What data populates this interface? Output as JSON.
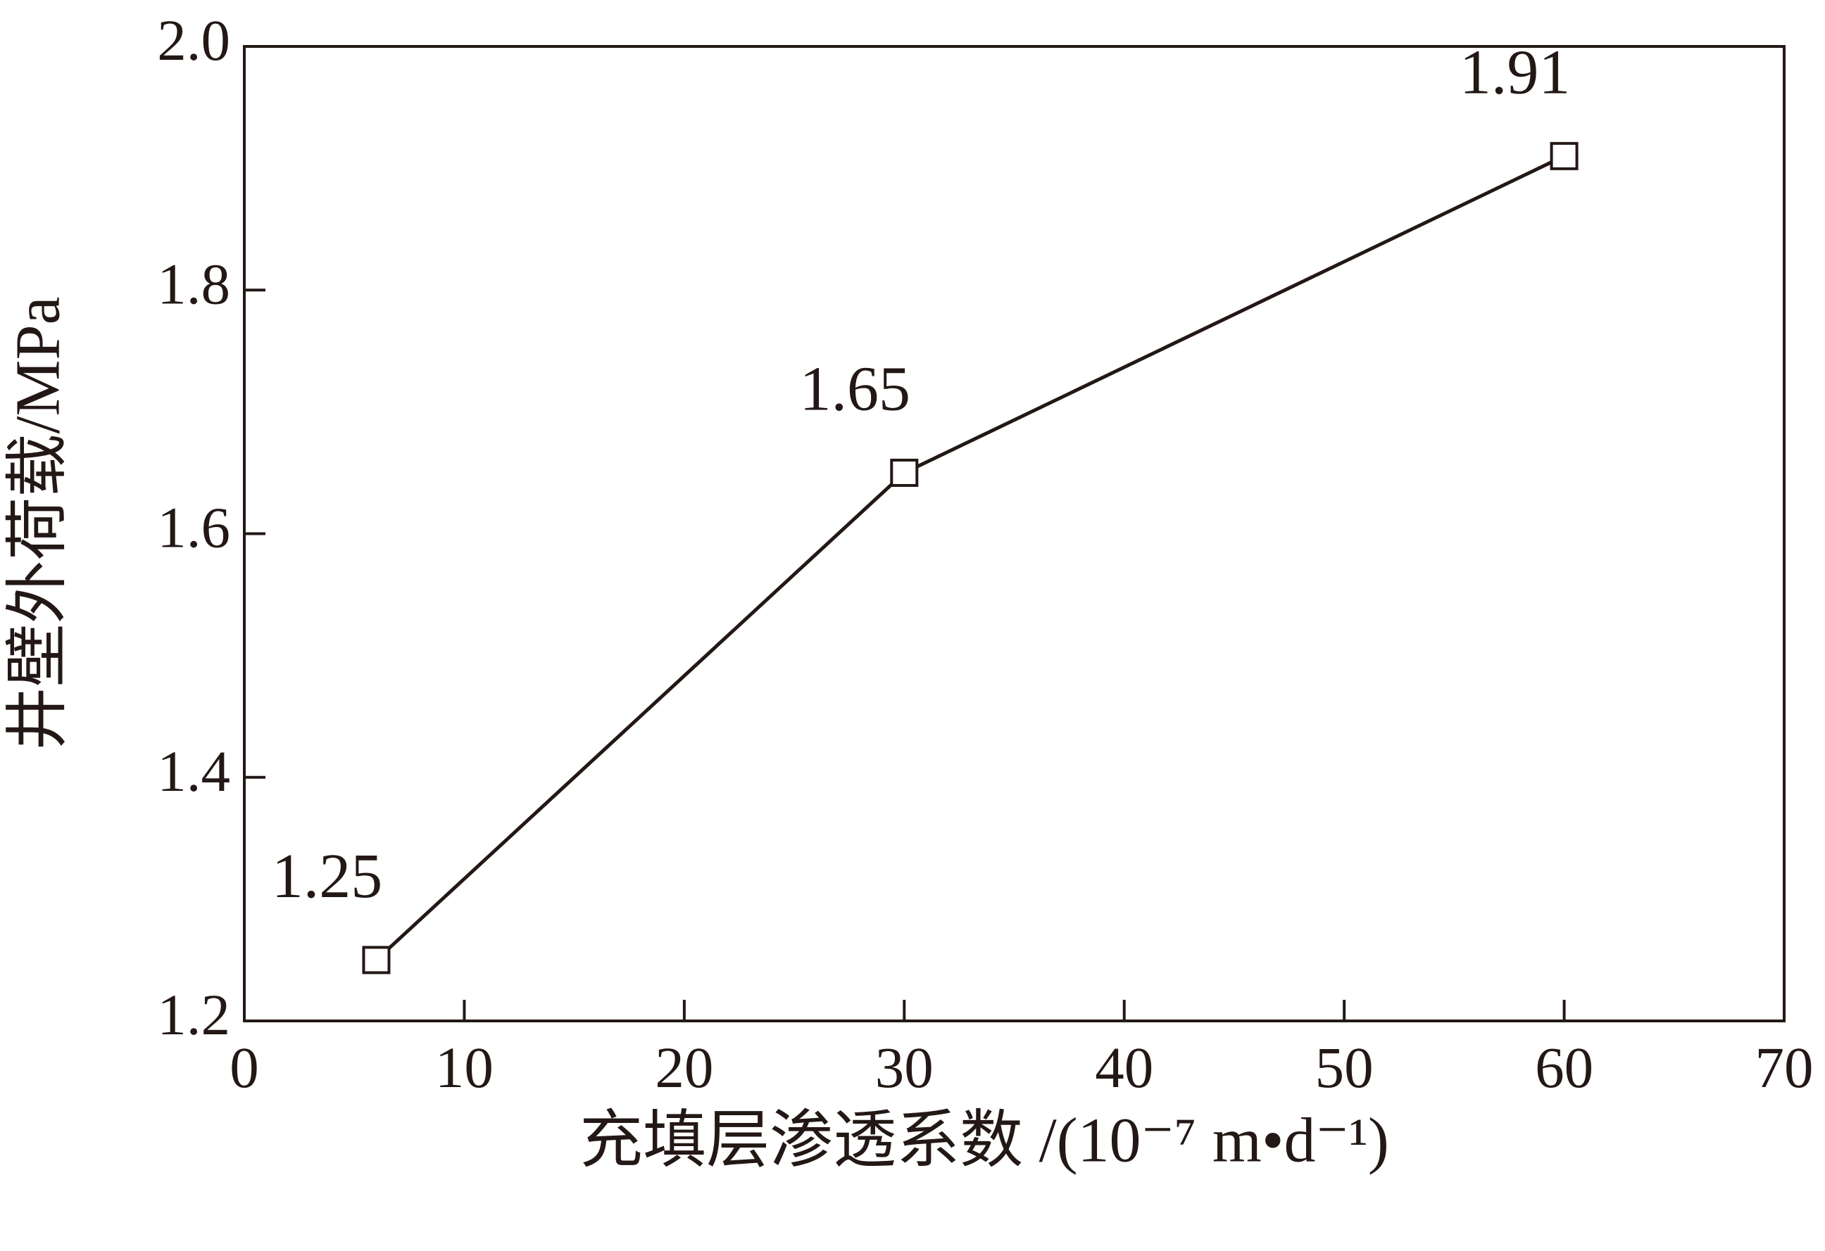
{
  "chart_data": {
    "type": "line",
    "xlabel": "充填层渗透系数 /(10⁻⁷ m•d⁻¹)",
    "ylabel": "井壁外荷载/MPa",
    "x": [
      6,
      30,
      60
    ],
    "series": [
      {
        "values": [
          1.25,
          1.65,
          1.91
        ],
        "color": "#231815"
      }
    ],
    "xlim": [
      0,
      70
    ],
    "xticks": [
      0,
      10,
      20,
      30,
      40,
      50,
      60,
      70
    ],
    "ylim": [
      1.2,
      2.0
    ],
    "yticks": [
      1.2,
      1.4,
      1.6,
      1.8,
      {
        "value": 2,
        "label": "2.0"
      }
    ],
    "grid": false
  }
}
